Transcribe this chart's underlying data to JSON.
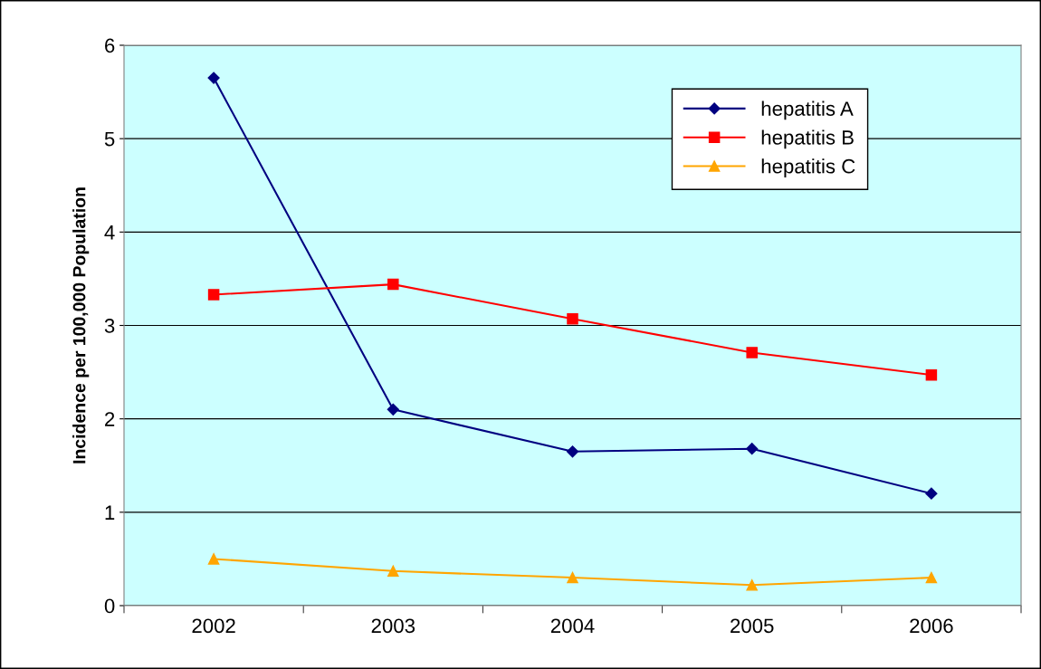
{
  "chart_data": {
    "type": "line",
    "ylabel": "Incidence per 100,000 Population",
    "categories": [
      "2002",
      "2003",
      "2004",
      "2005",
      "2006"
    ],
    "series": [
      {
        "name": "hepatitis A",
        "color": "#000080",
        "marker": "diamond",
        "values": [
          5.65,
          2.1,
          1.65,
          1.68,
          1.2
        ]
      },
      {
        "name": "hepatitis B",
        "color": "#ff0000",
        "marker": "square",
        "values": [
          3.33,
          3.44,
          3.07,
          2.71,
          2.47
        ]
      },
      {
        "name": "hepatitis C",
        "color": "#ffa500",
        "marker": "triangle",
        "values": [
          0.5,
          0.37,
          0.3,
          0.22,
          0.3
        ]
      }
    ],
    "ylim": [
      0,
      6
    ],
    "yticks": [
      0,
      1,
      2,
      3,
      4,
      5,
      6
    ],
    "grid": "y",
    "legend": "top",
    "line_style": "solid"
  }
}
